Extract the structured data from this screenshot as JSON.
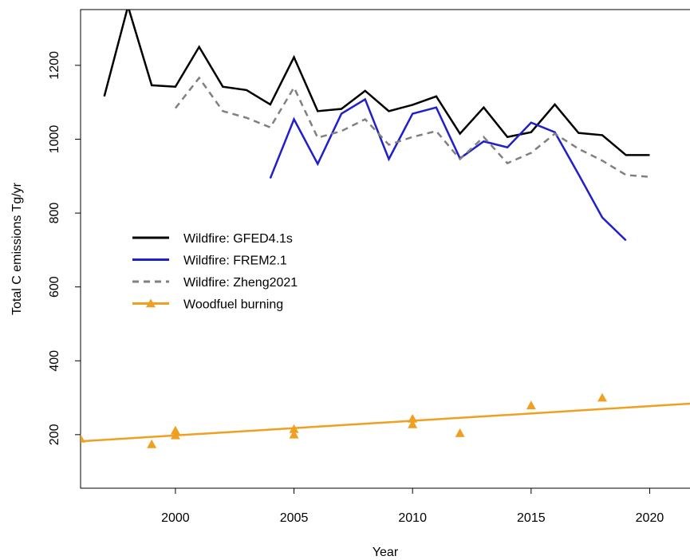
{
  "chart_data": {
    "type": "line",
    "x_label": "Year",
    "y_label": "Total C emissions Tg/yr",
    "xlim": [
      1996,
      2021.7
    ],
    "ylim": [
      55,
      1351
    ],
    "xticks": [
      2000,
      2005,
      2010,
      2015,
      2020
    ],
    "yticks": [
      200,
      400,
      600,
      800,
      1000,
      1200
    ],
    "series": [
      {
        "name": "Wildfire: GFED4.1s",
        "color": "#000000",
        "dash": "solid",
        "x": [
          1997,
          1998,
          1999,
          2000,
          2001,
          2002,
          2003,
          2004,
          2005,
          2006,
          2007,
          2008,
          2009,
          2010,
          2011,
          2012,
          2013,
          2014,
          2015,
          2016,
          2017,
          2018,
          2019,
          2020
        ],
        "values": [
          1116,
          1360,
          1146,
          1142,
          1250,
          1142,
          1133,
          1094,
          1222,
          1076,
          1082,
          1131,
          1076,
          1093,
          1116,
          1015,
          1086,
          1006,
          1019,
          1094,
          1017,
          1011,
          957,
          957
        ]
      },
      {
        "name": "Wildfire: FREM2.1",
        "color": "#1f1fcc",
        "dash": "solid",
        "x": [
          2004,
          2005,
          2006,
          2007,
          2008,
          2009,
          2010,
          2011,
          2012,
          2013,
          2014,
          2015,
          2016,
          2017,
          2018,
          2019
        ],
        "values": [
          894,
          1054,
          933,
          1069,
          1108,
          946,
          1069,
          1086,
          948,
          994,
          978,
          1045,
          1019,
          905,
          788,
          726
        ]
      },
      {
        "name": "Wildfire: Zheng2021",
        "color": "#808080",
        "dash": "dashed",
        "x": [
          2000,
          2001,
          2002,
          2003,
          2004,
          2005,
          2006,
          2007,
          2008,
          2009,
          2010,
          2011,
          2012,
          2013,
          2014,
          2015,
          2016,
          2017,
          2018,
          2019,
          2020
        ],
        "values": [
          1084,
          1166,
          1076,
          1058,
          1032,
          1140,
          1004,
          1022,
          1054,
          985,
          1006,
          1022,
          946,
          1006,
          935,
          963,
          1015,
          974,
          942,
          903,
          898
        ]
      },
      {
        "name": "Woodfuel burning",
        "color": "#f0a020",
        "dash": "points",
        "x": [
          1996,
          1999,
          2000,
          2000,
          2005,
          2005,
          2010,
          2010,
          2012,
          2015,
          2018
        ],
        "values": [
          189,
          174,
          211,
          198,
          215,
          200,
          243,
          228,
          204,
          279,
          300
        ],
        "trend_x": [
          1996,
          2021.7
        ],
        "trend_values": [
          182,
          284
        ]
      }
    ]
  }
}
